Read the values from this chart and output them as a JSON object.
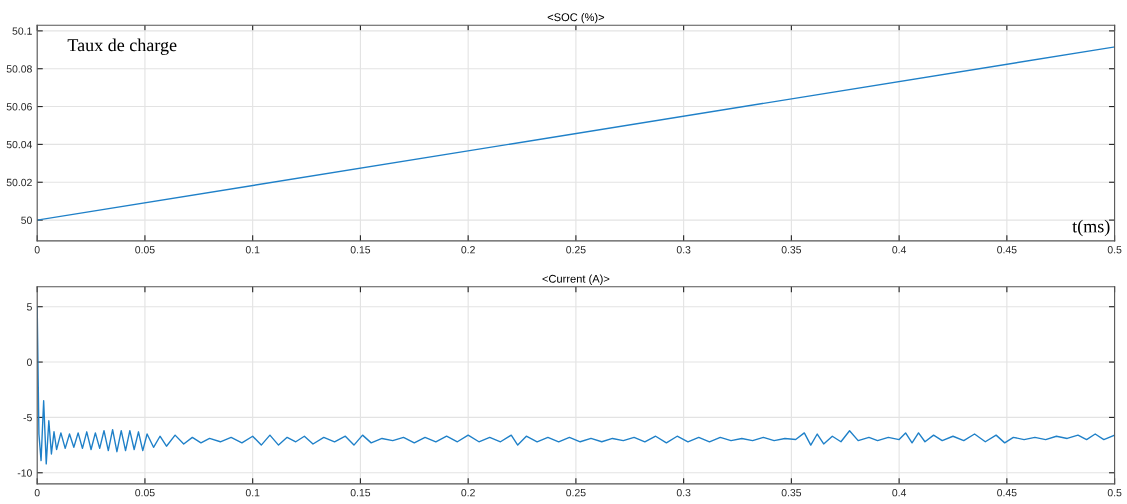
{
  "chart_data": [
    {
      "type": "line",
      "title": "<SOC (%)>",
      "annotations": [
        "Taux de charge",
        "t(ms)"
      ],
      "grid": true,
      "xlim": [
        0,
        0.5
      ],
      "xticks": [
        0,
        0.05,
        0.1,
        0.15,
        0.2,
        0.25,
        0.3,
        0.35,
        0.4,
        0.45,
        0.5
      ],
      "ylim": [
        49.989,
        50.103
      ],
      "yticks": [
        50,
        50.02,
        50.04,
        50.06,
        50.08,
        50.1
      ],
      "series": [
        {
          "color": "#1f80c8",
          "x": [
            0,
            0.5
          ],
          "values": [
            50.0,
            50.0915
          ]
        }
      ]
    },
    {
      "type": "line",
      "title": "<Current (A)>",
      "grid": true,
      "xlim": [
        0,
        0.5
      ],
      "xticks": [
        0,
        0.05,
        0.1,
        0.15,
        0.2,
        0.25,
        0.3,
        0.35,
        0.4,
        0.45,
        0.5
      ],
      "ylim": [
        -11,
        6.8
      ],
      "yticks": [
        -10,
        -5,
        0,
        5
      ],
      "series": [
        {
          "color": "#1f80c8",
          "x": [
            0,
            0.0008,
            0.0018,
            0.003,
            0.0042,
            0.0054,
            0.0066,
            0.0078,
            0.009,
            0.011,
            0.013,
            0.015,
            0.017,
            0.019,
            0.021,
            0.023,
            0.025,
            0.027,
            0.029,
            0.031,
            0.033,
            0.035,
            0.037,
            0.039,
            0.041,
            0.043,
            0.045,
            0.047,
            0.049,
            0.051,
            0.054,
            0.057,
            0.06,
            0.064,
            0.068,
            0.072,
            0.076,
            0.08,
            0.085,
            0.09,
            0.095,
            0.1,
            0.104,
            0.108,
            0.112,
            0.116,
            0.12,
            0.124,
            0.128,
            0.133,
            0.138,
            0.143,
            0.147,
            0.151,
            0.155,
            0.16,
            0.165,
            0.17,
            0.175,
            0.18,
            0.185,
            0.19,
            0.195,
            0.2,
            0.205,
            0.21,
            0.215,
            0.22,
            0.223,
            0.227,
            0.232,
            0.237,
            0.242,
            0.247,
            0.252,
            0.257,
            0.262,
            0.267,
            0.272,
            0.277,
            0.282,
            0.287,
            0.292,
            0.297,
            0.302,
            0.307,
            0.312,
            0.317,
            0.322,
            0.327,
            0.332,
            0.337,
            0.342,
            0.347,
            0.352,
            0.356,
            0.359,
            0.362,
            0.365,
            0.369,
            0.373,
            0.377,
            0.381,
            0.386,
            0.39,
            0.395,
            0.4,
            0.403,
            0.406,
            0.409,
            0.412,
            0.416,
            0.42,
            0.425,
            0.43,
            0.435,
            0.44,
            0.445,
            0.449,
            0.453,
            0.458,
            0.463,
            0.468,
            0.473,
            0.478,
            0.483,
            0.487,
            0.491,
            0.495,
            0.5
          ],
          "values": [
            5,
            -6.5,
            -8.9,
            -3.5,
            -9.2,
            -5.3,
            -8.3,
            -6.3,
            -7.9,
            -6.4,
            -7.8,
            -6.5,
            -7.7,
            -6.4,
            -7.8,
            -6.3,
            -7.9,
            -6.4,
            -7.8,
            -6.2,
            -8.0,
            -6.1,
            -8.1,
            -6.2,
            -8.0,
            -6.2,
            -7.9,
            -6.3,
            -8.0,
            -6.5,
            -7.7,
            -6.7,
            -7.6,
            -6.6,
            -7.4,
            -6.8,
            -7.3,
            -6.9,
            -7.2,
            -6.8,
            -7.3,
            -6.7,
            -7.5,
            -6.6,
            -7.5,
            -6.8,
            -7.2,
            -6.7,
            -7.4,
            -6.8,
            -7.2,
            -6.7,
            -7.5,
            -6.6,
            -7.3,
            -6.9,
            -7.1,
            -6.8,
            -7.3,
            -6.8,
            -7.2,
            -6.7,
            -7.2,
            -6.6,
            -7.2,
            -6.8,
            -7.2,
            -6.6,
            -7.5,
            -6.7,
            -7.2,
            -6.8,
            -7.2,
            -6.8,
            -7.2,
            -6.9,
            -7.2,
            -6.9,
            -7.1,
            -6.8,
            -7.2,
            -6.7,
            -7.3,
            -6.7,
            -7.2,
            -6.8,
            -7.2,
            -6.8,
            -7.1,
            -6.9,
            -7.1,
            -6.8,
            -7.1,
            -6.9,
            -7.0,
            -6.4,
            -7.5,
            -6.5,
            -7.4,
            -6.7,
            -7.2,
            -6.2,
            -7.1,
            -6.8,
            -7.1,
            -6.8,
            -7.0,
            -6.4,
            -7.3,
            -6.4,
            -7.2,
            -6.6,
            -7.1,
            -6.7,
            -7.1,
            -6.5,
            -7.2,
            -6.6,
            -7.3,
            -6.8,
            -7.0,
            -6.8,
            -7.0,
            -6.7,
            -6.9,
            -6.6,
            -7.0,
            -6.5,
            -7.0,
            -6.6
          ]
        }
      ]
    }
  ]
}
